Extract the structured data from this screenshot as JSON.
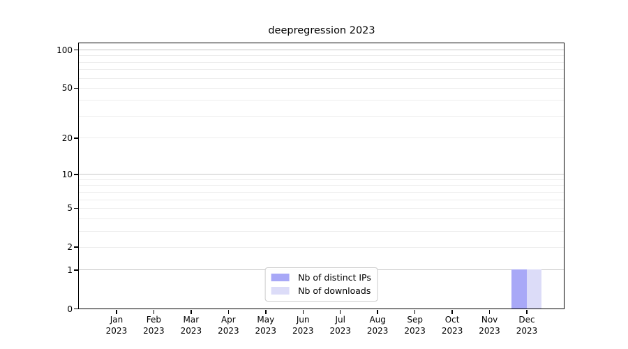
{
  "chart_data": {
    "type": "bar",
    "title": "deepregression 2023",
    "categories": [
      "Jan 2023",
      "Feb 2023",
      "Mar 2023",
      "Apr 2023",
      "May 2023",
      "Jun 2023",
      "Jul 2023",
      "Aug 2023",
      "Sep 2023",
      "Oct 2023",
      "Nov 2023",
      "Dec 2023"
    ],
    "series": [
      {
        "name": "Nb of distinct IPs",
        "color": "#a8a8f7",
        "values": [
          0,
          0,
          0,
          0,
          0,
          0,
          0,
          0,
          0,
          0,
          0,
          1
        ]
      },
      {
        "name": "Nb of downloads",
        "color": "#dcdcf8",
        "values": [
          0,
          0,
          0,
          0,
          0,
          0,
          0,
          0,
          0,
          0,
          0,
          1
        ]
      }
    ],
    "xlabel": "",
    "ylabel": "",
    "y_axis": {
      "scale": "log1p",
      "ticks": [
        0,
        1,
        2,
        5,
        10,
        20,
        50,
        100
      ],
      "minor_ticks": [
        3,
        4,
        6,
        7,
        8,
        9,
        30,
        40,
        60,
        70,
        80,
        90
      ],
      "ylim": [
        0,
        112
      ]
    },
    "grid": true,
    "legend_position": "lower-center-inside"
  },
  "colors": {
    "background": "#ffffff",
    "axis": "#000000",
    "major_grid": "#c6c6c6",
    "minor_grid": "#ededed",
    "legend_border": "#cccccc"
  }
}
